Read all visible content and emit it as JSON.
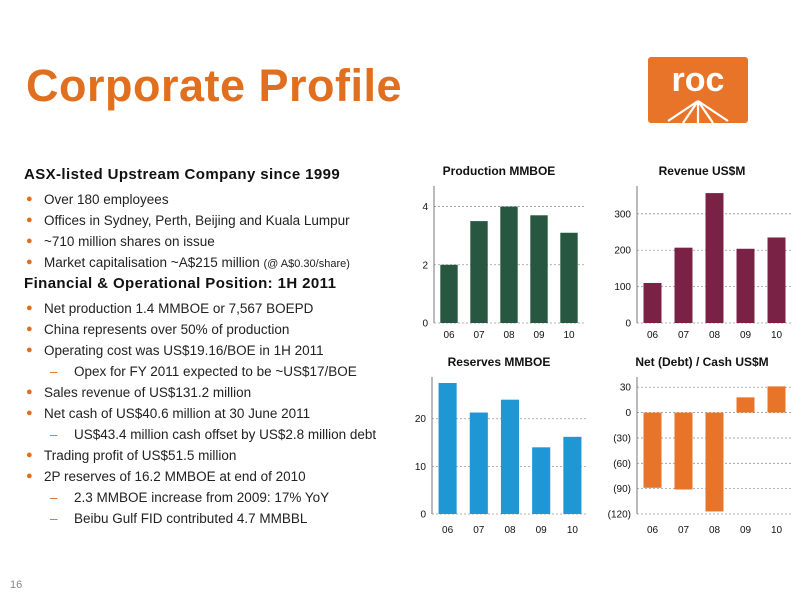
{
  "page": {
    "title": "Corporate Profile",
    "page_number": "16"
  },
  "logo": {
    "text": "roc",
    "color": "#e8742a"
  },
  "section1": {
    "heading": "ASX-listed Upstream Company since 1999",
    "items": [
      {
        "level": 1,
        "text": "Over 180 employees"
      },
      {
        "level": 1,
        "text": "Offices in Sydney, Perth, Beijing and Kuala Lumpur"
      },
      {
        "level": 1,
        "text": "~710 million shares on issue"
      },
      {
        "level": 1,
        "text": "Market capitalisation ~A$215 million",
        "note": "(@ A$0.30/share)"
      }
    ]
  },
  "section2": {
    "heading": "Financial & Operational Position: 1H 2011",
    "items": [
      {
        "level": 1,
        "text": "Net production 1.4 MMBOE or 7,567 BOEPD"
      },
      {
        "level": 1,
        "text": "China represents over 50% of production"
      },
      {
        "level": 1,
        "text": "Operating cost was US$19.16/BOE in 1H 2011"
      },
      {
        "level": 2,
        "text": "Opex for FY 2011 expected to be ~US$17/BOE"
      },
      {
        "level": 1,
        "text": "Sales revenue of US$131.2 million"
      },
      {
        "level": 1,
        "text": "Net cash of US$40.6 million at 30 June 2011"
      },
      {
        "level": 2,
        "text": "US$43.4 million cash offset by US$2.8 million debt"
      },
      {
        "level": 1,
        "text": "Trading profit of US$51.5 million"
      },
      {
        "level": 1,
        "text": "2P reserves of 16.2 MMBOE at end of 2010"
      },
      {
        "level": 2,
        "text": "2.3 MMBOE increase from 2009: 17% YoY"
      },
      {
        "level": 2,
        "text": "Beibu Gulf FID contributed 4.7 MMBBL"
      }
    ]
  },
  "chart_data": [
    {
      "type": "bar",
      "title": "Production MMBOE",
      "categories": [
        "06",
        "07",
        "08",
        "09",
        "10"
      ],
      "values": [
        2.0,
        3.5,
        4.0,
        3.7,
        3.1
      ],
      "ylim": [
        0,
        4.5
      ],
      "yticks": [
        0,
        2,
        4
      ],
      "ytick_labels": [
        "0",
        "2",
        "4"
      ],
      "color": "#275741",
      "grid": true
    },
    {
      "type": "bar",
      "title": "Revenue US$M",
      "categories": [
        "06",
        "07",
        "08",
        "09",
        "10"
      ],
      "values": [
        110,
        207,
        357,
        204,
        235
      ],
      "ylim": [
        0,
        360
      ],
      "yticks": [
        0,
        100,
        200,
        300
      ],
      "ytick_labels": [
        "0",
        "100",
        "200",
        "300"
      ],
      "color": "#7a2146",
      "grid": true
    },
    {
      "type": "bar",
      "title": "Reserves MMBOE",
      "categories": [
        "06",
        "07",
        "08",
        "09",
        "10"
      ],
      "values": [
        27.5,
        21.3,
        24.0,
        14.0,
        16.2
      ],
      "ylim": [
        0,
        27.5
      ],
      "yticks": [
        0,
        10,
        20
      ],
      "ytick_labels": [
        "0",
        "10",
        "20"
      ],
      "color": "#1f97d4",
      "grid": true
    },
    {
      "type": "bar",
      "title": "Net (Debt) / Cash US$M",
      "categories": [
        "06",
        "07",
        "08",
        "09",
        "10"
      ],
      "values": [
        -89,
        -91,
        -117,
        18,
        31
      ],
      "ylim": [
        -120,
        35
      ],
      "yticks": [
        -120,
        -90,
        -60,
        -30,
        0,
        30
      ],
      "ytick_labels": [
        "(120)",
        "(90)",
        "(60)",
        "(30)",
        "0",
        "30"
      ],
      "color": "#e8742a",
      "grid": true
    }
  ]
}
